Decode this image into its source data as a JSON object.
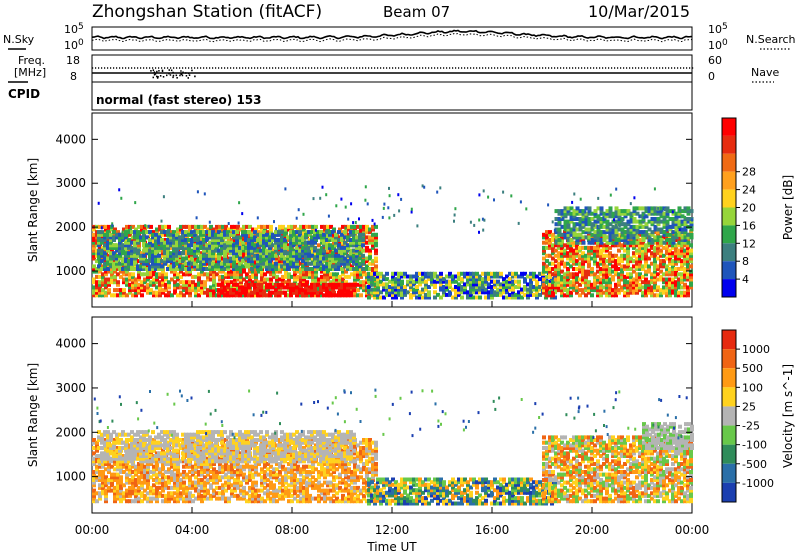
{
  "header": {
    "station": "Zhongshan Station (fitACF)",
    "beam": "Beam 07",
    "date": "10/Mar/2015"
  },
  "noise_panel": {
    "left_label": "N.Sky",
    "right_label": "N.Search",
    "left_ticks": [
      "10^5",
      "10^0"
    ],
    "right_ticks": [
      "10^5",
      "10^0"
    ]
  },
  "freq_panel": {
    "left_label_1": "Freq.",
    "left_label_2": "[MHz]",
    "left_ticks": [
      "18",
      "8"
    ],
    "right_label": "Nave",
    "right_ticks": [
      "60",
      "0"
    ]
  },
  "cpid_panel": {
    "label": "CPID",
    "mode": "normal (fast stereo) 153"
  },
  "x_axis": {
    "label": "Time UT",
    "ticks": [
      "00:00",
      "04:00",
      "08:00",
      "12:00",
      "16:00",
      "20:00",
      "00:00"
    ]
  },
  "chart_data": [
    {
      "type": "heatmap",
      "name": "power",
      "ylabel": "Slant Range [km]",
      "yticks": [
        "1000",
        "2000",
        "3000",
        "4000"
      ],
      "ylim": [
        180,
        4600
      ],
      "xlim_hours": [
        0,
        24
      ],
      "colorbar_label": "Power [dB]",
      "colorbar_ticks": [
        "4",
        "8",
        "12",
        "16",
        "20",
        "24",
        "28"
      ],
      "colors": [
        "#0000ee",
        "#1f55bb",
        "#3c7f7f",
        "#2fa64a",
        "#96d53a",
        "#ffd21e",
        "#ffa01e",
        "#f06a14",
        "#e62c0f",
        "#ff0000"
      ],
      "regions": [
        {
          "t0": 0.0,
          "t1": 11.3,
          "r0": 400,
          "r1": 2000,
          "cls": [
            3,
            4,
            5,
            6,
            7,
            8,
            9
          ]
        },
        {
          "t0": 0.2,
          "t1": 10.8,
          "r0": 1000,
          "r1": 1900,
          "cls": [
            1,
            2,
            3,
            4
          ]
        },
        {
          "t0": 5.0,
          "t1": 10.5,
          "r0": 400,
          "r1": 700,
          "cls": [
            8,
            9,
            9
          ]
        },
        {
          "t0": 11.0,
          "t1": 18.5,
          "r0": 350,
          "r1": 900,
          "cls": [
            0,
            1,
            2,
            3,
            4,
            5
          ]
        },
        {
          "t0": 18.0,
          "t1": 24.0,
          "r0": 400,
          "r1": 1900,
          "cls": [
            3,
            4,
            5,
            6,
            7,
            8,
            9
          ]
        },
        {
          "t0": 18.5,
          "t1": 24.0,
          "r0": 1600,
          "r1": 2400,
          "cls": [
            1,
            2,
            3,
            4
          ]
        }
      ]
    },
    {
      "type": "heatmap",
      "name": "velocity",
      "ylabel": "Slant Range [km]",
      "yticks": [
        "1000",
        "2000",
        "3000",
        "4000"
      ],
      "ylim": [
        180,
        4600
      ],
      "xlim_hours": [
        0,
        24
      ],
      "colorbar_label": "Velocity [m s^-1]",
      "colorbar_ticks": [
        "1000",
        "500",
        "100",
        "25",
        "-25",
        "-100",
        "-500",
        "-1000"
      ],
      "colors": [
        "#1b3fb0",
        "#2a6fa8",
        "#2f8c5a",
        "#68c84a",
        "#b4b4b4",
        "#ffd21e",
        "#ff9a14",
        "#f06414",
        "#e62a0f"
      ],
      "regions": [
        {
          "t0": 0.0,
          "t1": 11.3,
          "r0": 400,
          "r1": 1800,
          "cls": [
            4,
            5,
            6,
            6,
            7
          ]
        },
        {
          "t0": 0.2,
          "t1": 10.5,
          "r0": 1300,
          "r1": 2000,
          "cls": [
            4,
            4,
            5
          ]
        },
        {
          "t0": 11.0,
          "t1": 18.5,
          "r0": 350,
          "r1": 900,
          "cls": [
            0,
            1,
            2,
            3,
            5,
            6
          ]
        },
        {
          "t0": 18.0,
          "t1": 24.0,
          "r0": 400,
          "r1": 1900,
          "cls": [
            3,
            4,
            5,
            6,
            7
          ]
        },
        {
          "t0": 22.0,
          "t1": 24.0,
          "r0": 1600,
          "r1": 2200,
          "cls": [
            4,
            4,
            3
          ]
        }
      ]
    }
  ]
}
